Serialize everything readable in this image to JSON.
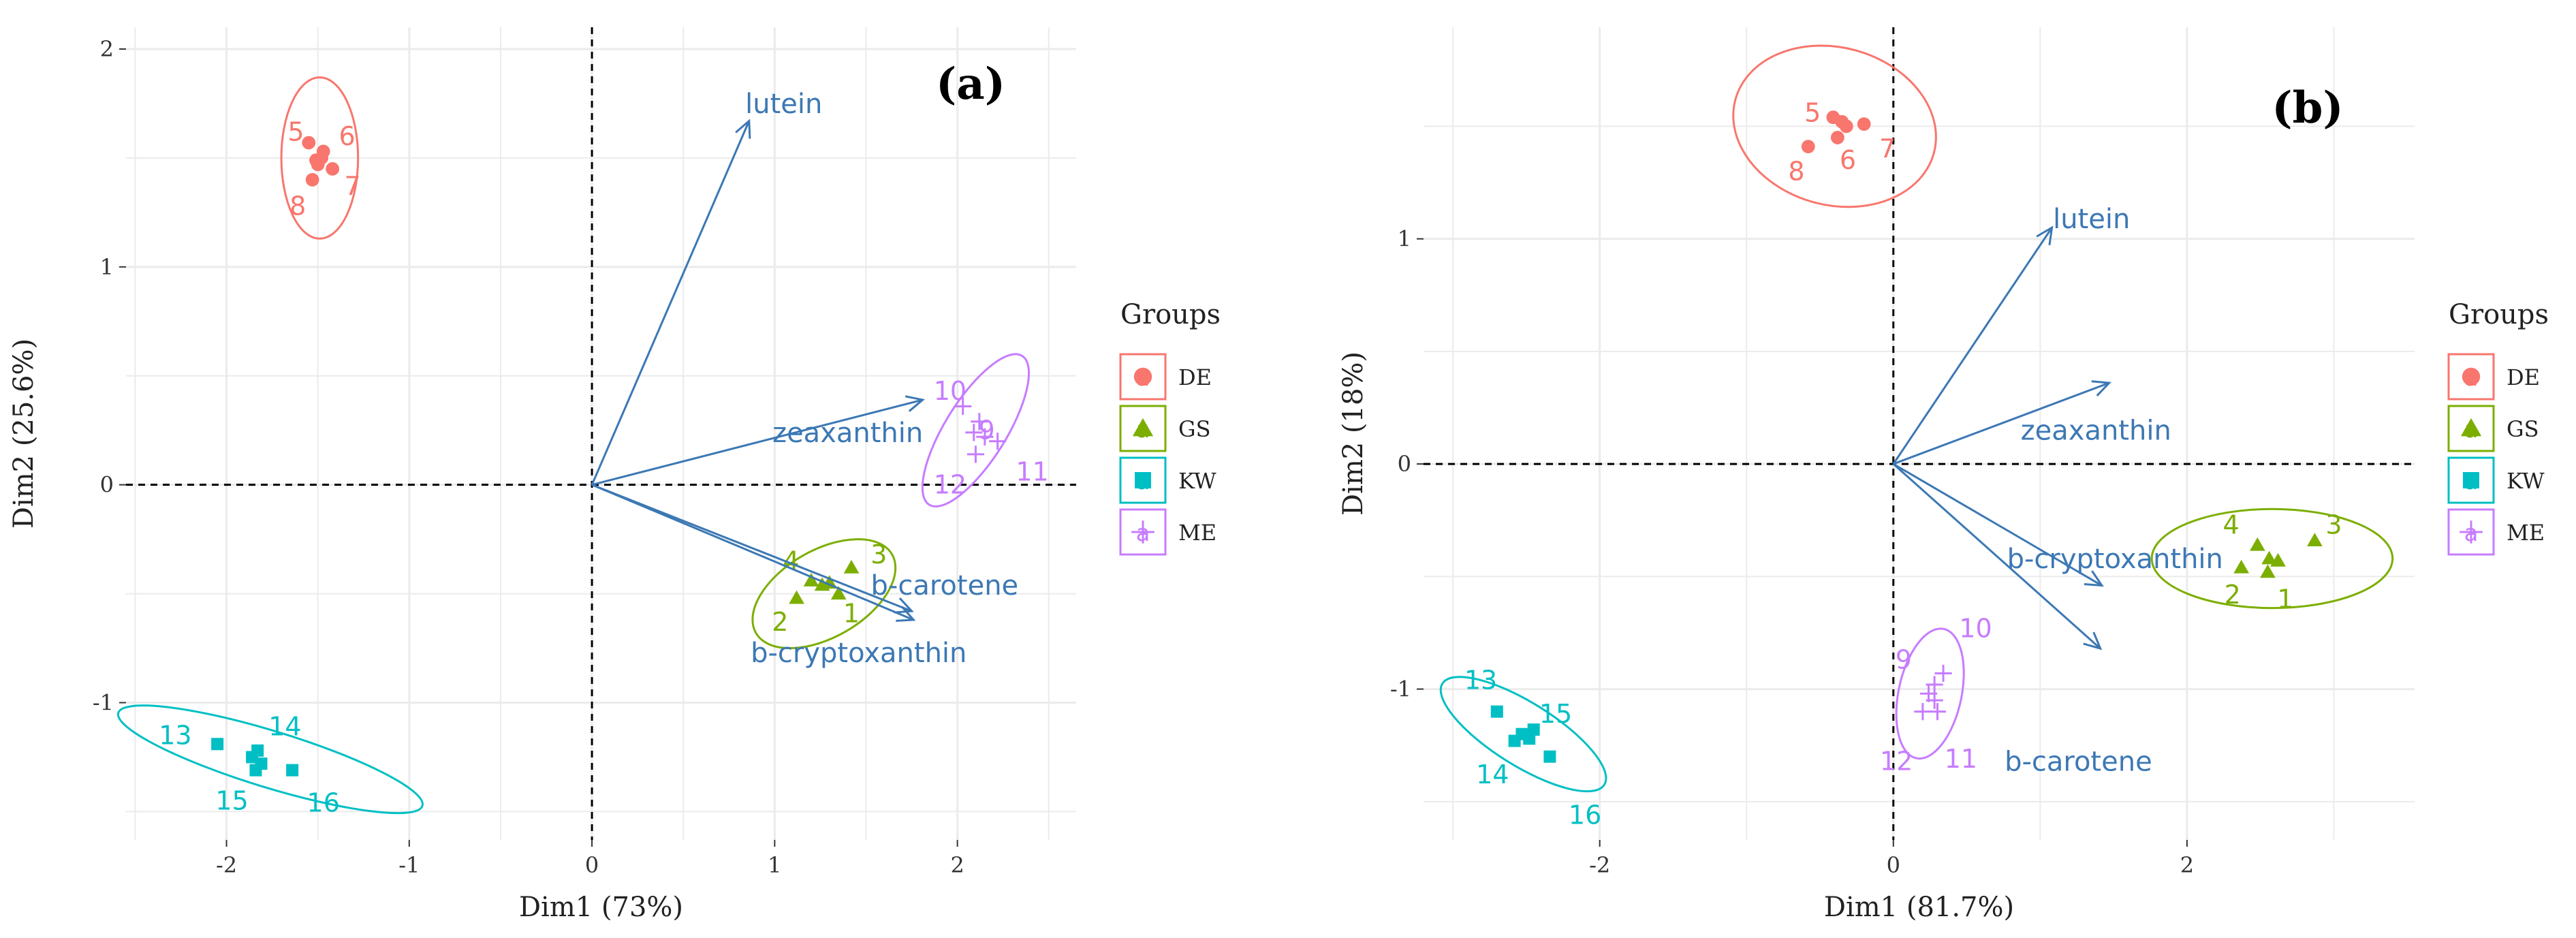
{
  "chart_data": [
    {
      "type": "scatter",
      "panel_label": "(a)",
      "xlabel": "Dim1 (73%)",
      "ylabel": "Dim2 (25.6%)",
      "xlim": [
        -2.55,
        2.65
      ],
      "ylim": [
        -1.63,
        2.1
      ],
      "xticks": [
        -2,
        -1,
        0,
        1,
        2
      ],
      "yticks": [
        -1,
        0,
        1,
        2
      ],
      "legend_title": "Groups",
      "legend_position": "right",
      "groups": [
        {
          "name": "DE",
          "color": "#f8766d",
          "shape": "circle",
          "ellipse": {
            "cx": -1.49,
            "cy": 1.5,
            "rx": 0.21,
            "ry": 0.37,
            "angle": 0
          },
          "points": [
            {
              "label": "5",
              "x": -1.55,
              "y": 1.57,
              "lx": -1.62,
              "ly": 1.62
            },
            {
              "label": "6",
              "x": -1.47,
              "y": 1.53,
              "lx": -1.34,
              "ly": 1.6
            },
            {
              "label": "7",
              "x": -1.42,
              "y": 1.45,
              "lx": -1.31,
              "ly": 1.37
            },
            {
              "label": "8",
              "x": -1.53,
              "y": 1.4,
              "lx": -1.61,
              "ly": 1.28
            },
            {
              "label": "",
              "x": -1.51,
              "y": 1.49
            },
            {
              "label": "",
              "x": -1.48,
              "y": 1.5
            },
            {
              "label": "",
              "x": -1.5,
              "y": 1.47
            }
          ]
        },
        {
          "name": "GS",
          "color": "#7cae00",
          "shape": "triangle",
          "ellipse": {
            "cx": 1.27,
            "cy": -0.5,
            "rx": 0.43,
            "ry": 0.2,
            "angle": -30
          },
          "points": [
            {
              "label": "1",
              "x": 1.35,
              "y": -0.5,
              "lx": 1.42,
              "ly": -0.59
            },
            {
              "label": "2",
              "x": 1.12,
              "y": -0.52,
              "lx": 1.03,
              "ly": -0.63
            },
            {
              "label": "3",
              "x": 1.42,
              "y": -0.38,
              "lx": 1.57,
              "ly": -0.32
            },
            {
              "label": "4",
              "x": 1.2,
              "y": -0.44,
              "lx": 1.09,
              "ly": -0.35
            },
            {
              "label": "",
              "x": 1.26,
              "y": -0.46
            },
            {
              "label": "",
              "x": 1.3,
              "y": -0.45
            }
          ]
        },
        {
          "name": "KW",
          "color": "#00bfc4",
          "shape": "square",
          "ellipse": {
            "cx": -1.76,
            "cy": -1.26,
            "rx": 0.87,
            "ry": 0.13,
            "angle": 17
          },
          "points": [
            {
              "label": "13",
              "x": -2.05,
              "y": -1.19,
              "lx": -2.28,
              "ly": -1.15
            },
            {
              "label": "14",
              "x": -1.83,
              "y": -1.22,
              "lx": -1.68,
              "ly": -1.11
            },
            {
              "label": "15",
              "x": -1.84,
              "y": -1.31,
              "lx": -1.97,
              "ly": -1.45
            },
            {
              "label": "16",
              "x": -1.64,
              "y": -1.31,
              "lx": -1.47,
              "ly": -1.46
            },
            {
              "label": "",
              "x": -1.86,
              "y": -1.25
            },
            {
              "label": "",
              "x": -1.81,
              "y": -1.28
            }
          ]
        },
        {
          "name": "ME",
          "color": "#c77cff",
          "shape": "plus",
          "ellipse": {
            "cx": 2.1,
            "cy": 0.25,
            "rx": 0.48,
            "ry": 0.14,
            "angle": -58
          },
          "points": [
            {
              "label": "9",
              "x": 2.12,
              "y": 0.29,
              "lx": 2.16,
              "ly": 0.25
            },
            {
              "label": "10",
              "x": 2.03,
              "y": 0.36,
              "lx": 1.96,
              "ly": 0.43
            },
            {
              "label": "11",
              "x": 2.22,
              "y": 0.2,
              "lx": 2.41,
              "ly": 0.06
            },
            {
              "label": "12",
              "x": 2.1,
              "y": 0.14,
              "lx": 1.96,
              "ly": 0.0
            },
            {
              "label": "",
              "x": 2.09,
              "y": 0.24
            },
            {
              "label": "",
              "x": 2.15,
              "y": 0.22
            }
          ]
        }
      ],
      "variables": [
        {
          "name": "lutein",
          "x": 0.86,
          "y": 1.67,
          "lx": 1.05,
          "ly": 1.75
        },
        {
          "name": "zeaxanthin",
          "x": 1.81,
          "y": 0.39,
          "lx": 1.4,
          "ly": 0.24
        },
        {
          "name": "b-carotene",
          "x": 1.75,
          "y": -0.58,
          "lx": 1.93,
          "ly": -0.46
        },
        {
          "name": "b-cryptoxanthin",
          "x": 1.76,
          "y": -0.62,
          "lx": 1.46,
          "ly": -0.77
        }
      ]
    },
    {
      "type": "scatter",
      "panel_label": "(b)",
      "xlabel": "Dim1 (81.7%)",
      "ylabel": "Dim2 (18%)",
      "xlim": [
        -3.2,
        3.55
      ],
      "ylim": [
        -1.67,
        1.94
      ],
      "xticks": [
        -2,
        0,
        2
      ],
      "yticks": [
        -1,
        0,
        1
      ],
      "legend_title": "Groups",
      "legend_position": "right",
      "groups": [
        {
          "name": "DE",
          "color": "#f8766d",
          "shape": "circle",
          "ellipse": {
            "cx": -0.4,
            "cy": 1.5,
            "rx": 0.7,
            "ry": 0.35,
            "angle": 15
          },
          "points": [
            {
              "label": "5",
              "x": -0.41,
              "y": 1.54,
              "lx": -0.55,
              "ly": 1.56
            },
            {
              "label": "6",
              "x": -0.38,
              "y": 1.45,
              "lx": -0.31,
              "ly": 1.35
            },
            {
              "label": "7",
              "x": -0.2,
              "y": 1.51,
              "lx": -0.04,
              "ly": 1.4
            },
            {
              "label": "8",
              "x": -0.58,
              "y": 1.41,
              "lx": -0.66,
              "ly": 1.3
            },
            {
              "label": "",
              "x": -0.35,
              "y": 1.52
            },
            {
              "label": "",
              "x": -0.32,
              "y": 1.5
            }
          ]
        },
        {
          "name": "GS",
          "color": "#7cae00",
          "shape": "triangle",
          "ellipse": {
            "cx": 2.58,
            "cy": -0.42,
            "rx": 0.82,
            "ry": 0.22,
            "angle": 0
          },
          "points": [
            {
              "label": "1",
              "x": 2.55,
              "y": -0.48,
              "lx": 2.67,
              "ly": -0.6
            },
            {
              "label": "2",
              "x": 2.37,
              "y": -0.46,
              "lx": 2.31,
              "ly": -0.58
            },
            {
              "label": "3",
              "x": 2.87,
              "y": -0.34,
              "lx": 3.0,
              "ly": -0.27
            },
            {
              "label": "4",
              "x": 2.48,
              "y": -0.36,
              "lx": 2.3,
              "ly": -0.27
            },
            {
              "label": "",
              "x": 2.56,
              "y": -0.42
            },
            {
              "label": "",
              "x": 2.62,
              "y": -0.43
            }
          ]
        },
        {
          "name": "KW",
          "color": "#00bfc4",
          "shape": "square",
          "ellipse": {
            "cx": -2.52,
            "cy": -1.2,
            "rx": 0.65,
            "ry": 0.14,
            "angle": 32
          },
          "points": [
            {
              "label": "13",
              "x": -2.7,
              "y": -1.1,
              "lx": -2.81,
              "ly": -0.96
            },
            {
              "label": "14",
              "x": -2.58,
              "y": -1.23,
              "lx": -2.73,
              "ly": -1.38
            },
            {
              "label": "15",
              "x": -2.45,
              "y": -1.18,
              "lx": -2.3,
              "ly": -1.11
            },
            {
              "label": "16",
              "x": -2.34,
              "y": -1.3,
              "lx": -2.1,
              "ly": -1.56
            },
            {
              "label": "",
              "x": -2.53,
              "y": -1.2
            },
            {
              "label": "",
              "x": -2.48,
              "y": -1.22
            }
          ]
        },
        {
          "name": "ME",
          "color": "#c77cff",
          "shape": "plus",
          "ellipse": {
            "cx": 0.25,
            "cy": -1.02,
            "rx": 0.45,
            "ry": 0.14,
            "angle": -78
          },
          "points": [
            {
              "label": "9",
              "x": 0.28,
              "y": -0.98,
              "lx": 0.07,
              "ly": -0.87
            },
            {
              "label": "10",
              "x": 0.34,
              "y": -0.93,
              "lx": 0.56,
              "ly": -0.73
            },
            {
              "label": "11",
              "x": 0.3,
              "y": -1.1,
              "lx": 0.46,
              "ly": -1.31
            },
            {
              "label": "12",
              "x": 0.2,
              "y": -1.1,
              "lx": 0.02,
              "ly": -1.32
            },
            {
              "label": "",
              "x": 0.24,
              "y": -1.02
            },
            {
              "label": "",
              "x": 0.28,
              "y": -1.05
            }
          ]
        }
      ],
      "variables": [
        {
          "name": "lutein",
          "x": 1.08,
          "y": 1.05,
          "lx": 1.35,
          "ly": 1.09
        },
        {
          "name": "zeaxanthin",
          "x": 1.47,
          "y": 0.36,
          "lx": 1.38,
          "ly": 0.15
        },
        {
          "name": "b-cryptoxanthin",
          "x": 1.42,
          "y": -0.54,
          "lx": 1.51,
          "ly": -0.42
        },
        {
          "name": "b-carotene",
          "x": 1.41,
          "y": -0.82,
          "lx": 1.26,
          "ly": -1.32
        }
      ]
    }
  ]
}
